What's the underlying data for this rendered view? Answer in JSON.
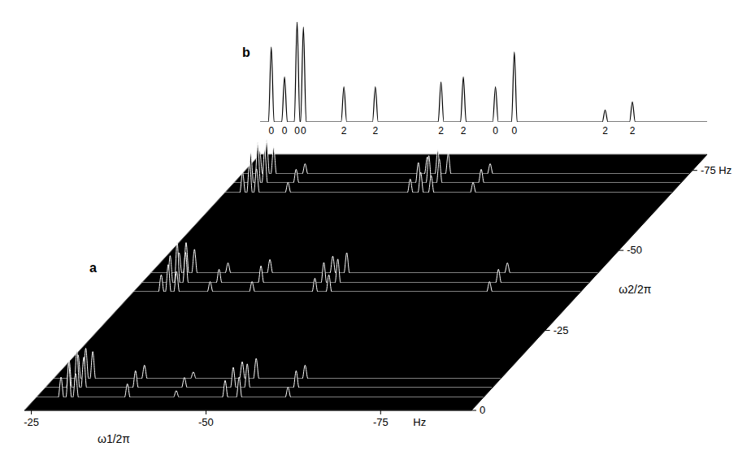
{
  "chart_data": [
    {
      "type": "line",
      "title": "b",
      "tick_labels": false,
      "color": "#000000",
      "xlim": [
        -24,
        -88
      ],
      "ylim": [
        0,
        100
      ],
      "x": [
        -24,
        -25.2,
        -25.6,
        -26.0,
        -27.1,
        -27.5,
        -27.9,
        -28.9,
        -29.3,
        -29.7,
        -29.8,
        -30.2,
        -30.6,
        -35.6,
        -36.0,
        -36.4,
        -40.1,
        -40.5,
        -40.9,
        -49.5,
        -49.9,
        -50.3,
        -52.7,
        -53.1,
        -53.5,
        -57.3,
        -57.7,
        -58.1,
        -60.0,
        -60.4,
        -60.8,
        -73.0,
        -73.4,
        -73.8,
        -76.9,
        -77.3,
        -77.7,
        -88
      ],
      "values": [
        0,
        0,
        75,
        0,
        0,
        45,
        0,
        0,
        100,
        0,
        0,
        95,
        0,
        0,
        35,
        0,
        0,
        35,
        0,
        0,
        40,
        0,
        0,
        45,
        0,
        0,
        35,
        0,
        0,
        70,
        0,
        0,
        12,
        0,
        0,
        20,
        0,
        0
      ],
      "peak_labels": {
        "x": [
          -25.6,
          -27.5,
          -29.3,
          -30.2,
          -36.0,
          -40.5,
          -49.9,
          -53.1,
          -57.7,
          -60.4,
          -73.4,
          -77.3
        ],
        "labels": [
          0,
          0,
          0,
          0,
          2,
          2,
          2,
          2,
          0,
          0,
          2,
          2
        ]
      }
    },
    {
      "type": "stacked_plot",
      "title": "a",
      "xlabel": "ω1/2π",
      "ylabel": "ω2/2π",
      "color": "#ffffff",
      "xlim": [
        -24,
        -88
      ],
      "xticks": [
        -25,
        -50,
        -75
      ],
      "ylim": [
        0,
        -80
      ],
      "yticks": [
        0,
        -25,
        -50,
        {
          "value": -75,
          "label": "-75 Hz"
        }
      ],
      "annotations": [
        "Hz"
      ],
      "zlim": [
        0,
        12
      ],
      "clusters": [
        {
          "x": [
            -24,
            -27.1,
            -27.5,
            -27.9,
            -28.2,
            -28.6,
            -29.0,
            -29.2,
            -29.6,
            -30.0,
            -36.6,
            -37.0,
            -37.4,
            -43.6,
            -44.0,
            -44.4,
            -50.6,
            -51.0,
            -51.4,
            -52.6,
            -53.0,
            -53.4,
            -59.6,
            -60.0,
            -60.4,
            -88
          ],
          "traces": [
            {
              "omega2": -10,
              "values": [
                0,
                0,
                7,
                0,
                0,
                9,
                0,
                0,
                8,
                0,
                0,
                4,
                0,
                0,
                2,
                0,
                0,
                5,
                0,
                0,
                6,
                0,
                0,
                4,
                0,
                0
              ]
            },
            {
              "omega2": -7,
              "values": [
                0,
                0,
                8,
                0,
                0,
                11,
                0,
                0,
                9,
                0,
                0,
                5,
                0,
                0,
                3,
                0,
                0,
                6,
                0,
                0,
                7,
                0,
                0,
                5,
                0,
                0
              ]
            },
            {
              "omega2": -4,
              "values": [
                0,
                0,
                6,
                0,
                0,
                10,
                0,
                0,
                7,
                0,
                0,
                4,
                0,
                0,
                2,
                0,
                0,
                5,
                0,
                0,
                6,
                0,
                0,
                3,
                0,
                0
              ]
            }
          ]
        },
        {
          "x": [
            -24,
            -27.6,
            -28.0,
            -28.4,
            -28.6,
            -29.0,
            -29.4,
            -29.8,
            -30.2,
            -30.6,
            -34.6,
            -35.0,
            -35.4,
            -40.6,
            -41.0,
            -41.4,
            -49.6,
            -50.0,
            -50.4,
            -51.6,
            -52.0,
            -52.4,
            -74.6,
            -75.0,
            -75.4,
            -88
          ],
          "traces": [
            {
              "omega2": -43,
              "values": [
                0,
                0,
                6,
                0,
                0,
                9,
                0,
                0,
                7,
                0,
                0,
                3,
                0,
                0,
                4,
                0,
                0,
                5,
                0,
                0,
                6,
                0,
                0,
                3,
                0,
                0
              ]
            },
            {
              "omega2": -40,
              "values": [
                0,
                0,
                8,
                0,
                0,
                12,
                0,
                0,
                9,
                0,
                0,
                4,
                0,
                0,
                5,
                0,
                0,
                6,
                0,
                0,
                7,
                0,
                0,
                4,
                0,
                0
              ]
            },
            {
              "omega2": -37,
              "values": [
                0,
                0,
                5,
                0,
                0,
                8,
                0,
                0,
                6,
                0,
                0,
                3,
                0,
                0,
                3,
                0,
                0,
                4,
                0,
                0,
                5,
                0,
                0,
                3,
                0,
                0
              ]
            }
          ]
        },
        {
          "x": [
            -24,
            -26.1,
            -26.5,
            -26.9,
            -27.1,
            -27.5,
            -27.9,
            -28.1,
            -28.5,
            -28.9,
            -32.6,
            -33.0,
            -33.4,
            -50.1,
            -50.5,
            -50.9,
            -51.6,
            -52.0,
            -52.4,
            -53.1,
            -53.5,
            -53.9,
            -59.1,
            -59.5,
            -59.9,
            -88
          ],
          "traces": [
            {
              "omega2": -74,
              "values": [
                0,
                0,
                7,
                0,
                0,
                10,
                0,
                0,
                8,
                0,
                0,
                3,
                0,
                0,
                5,
                0,
                0,
                7,
                0,
                0,
                6,
                0,
                0,
                3,
                0,
                0
              ]
            },
            {
              "omega2": -71,
              "values": [
                0,
                0,
                9,
                0,
                0,
                12,
                0,
                0,
                10,
                0,
                0,
                4,
                0,
                0,
                6,
                0,
                0,
                8,
                0,
                0,
                7,
                0,
                0,
                4,
                0,
                0
              ]
            },
            {
              "omega2": -68,
              "values": [
                0,
                0,
                6,
                0,
                0,
                9,
                0,
                0,
                7,
                0,
                0,
                3,
                0,
                0,
                4,
                0,
                0,
                6,
                0,
                0,
                5,
                0,
                0,
                3,
                0,
                0
              ]
            }
          ]
        }
      ]
    }
  ]
}
